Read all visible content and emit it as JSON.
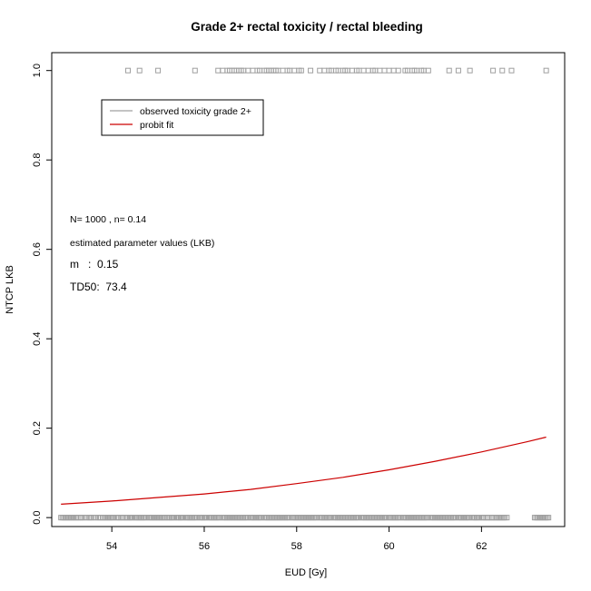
{
  "chart_data": {
    "type": "scatter",
    "title": "Grade 2+ rectal toxicity / rectal bleeding",
    "xlabel": "EUD [Gy]",
    "ylabel": "NTCP LKB",
    "xlim": [
      52.7,
      63.8
    ],
    "ylim": [
      -0.02,
      1.04
    ],
    "x_ticks": [
      54,
      56,
      58,
      60,
      62
    ],
    "x_tick_labels": [
      "54",
      "56",
      "58",
      "60",
      "62"
    ],
    "y_ticks": [
      0.0,
      0.2,
      0.4,
      0.6,
      0.8,
      1.0
    ],
    "y_tick_labels": [
      "0.0",
      "0.2",
      "0.4",
      "0.6",
      "0.8",
      "1.0"
    ],
    "grid": false,
    "legend_position": "top-left",
    "series": [
      {
        "name": "observed toxicity grade 2+",
        "kind": "points",
        "marker": "open-square",
        "color": "#a0a0a0",
        "tox1_x": [
          54.35,
          54.6,
          55.0,
          55.8,
          56.3,
          56.4,
          56.5,
          56.55,
          56.6,
          56.65,
          56.7,
          56.75,
          56.8,
          56.85,
          56.95,
          57.05,
          57.15,
          57.2,
          57.3,
          57.35,
          57.4,
          57.45,
          57.5,
          57.55,
          57.6,
          57.7,
          57.8,
          57.85,
          57.95,
          58.05,
          58.1,
          58.3,
          58.5,
          58.6,
          58.7,
          58.75,
          58.85,
          58.9,
          59.0,
          59.05,
          59.1,
          59.2,
          59.3,
          59.35,
          59.45,
          59.55,
          59.65,
          59.7,
          59.8,
          59.9,
          60.0,
          60.1,
          60.2,
          60.35,
          60.4,
          60.5,
          60.55,
          60.6,
          60.7,
          60.75,
          60.85,
          61.3,
          61.5,
          61.75,
          62.25,
          62.45,
          62.65,
          63.4
        ],
        "tox1_y": 1,
        "tox0_x_sample": [
          52.9,
          53.3,
          53.4,
          53.45,
          53.5,
          53.6,
          53.65,
          53.7,
          53.8,
          53.95,
          54.1,
          54.2,
          54.3,
          54.5,
          54.8,
          55.2,
          55.4,
          55.6,
          55.9,
          56.1,
          56.4,
          56.7,
          57.0,
          57.3,
          57.6,
          57.9,
          58.2,
          58.5,
          58.8,
          59.1,
          59.4,
          59.7,
          60.0,
          60.3,
          60.6,
          60.9,
          61.2,
          61.5,
          61.8,
          62.0,
          62.1,
          62.2,
          62.3,
          62.55,
          63.15,
          63.45
        ],
        "tox0_y": 0
      },
      {
        "name": "probit fit",
        "kind": "line",
        "color": "#cc0000",
        "x": [
          52.9,
          54.0,
          55.0,
          56.0,
          57.0,
          58.0,
          59.0,
          60.0,
          61.0,
          62.0,
          63.0,
          63.4
        ],
        "y": [
          0.03,
          0.037,
          0.045,
          0.053,
          0.063,
          0.076,
          0.09,
          0.107,
          0.126,
          0.147,
          0.17,
          0.18
        ]
      }
    ],
    "annotations": [
      "N= 1000 , n= 0.14",
      "estimated parameter values (LKB)",
      "m   :  0.15",
      "TD50:  73.4"
    ]
  },
  "colors": {
    "fit": "#cc0000",
    "points": "#a0a0a0",
    "axis": "#000000"
  }
}
